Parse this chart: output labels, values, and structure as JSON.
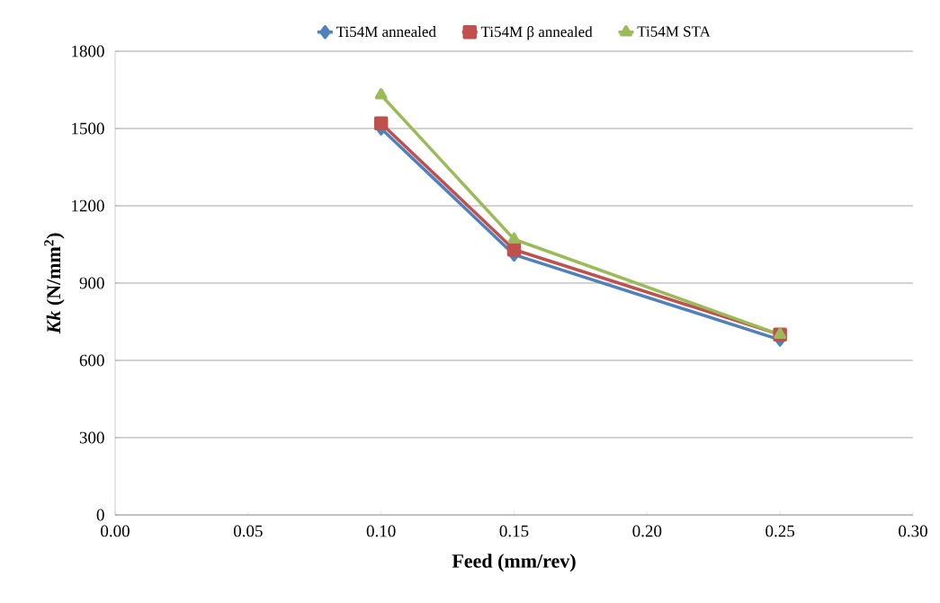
{
  "chart_data": {
    "type": "line",
    "xlabel": "Feed (mm/rev)",
    "ylabel": "*Kk* (N/mm$^{2}$)",
    "x": [
      0.1,
      0.15,
      0.25
    ],
    "series": [
      {
        "name": "Ti54M annealed",
        "color": "#4f81bd",
        "marker": "diamond",
        "values": [
          1500,
          1010,
          680
        ]
      },
      {
        "name": "Ti54M β annealed",
        "color": "#c0504d",
        "marker": "square",
        "values": [
          1520,
          1030,
          700
        ]
      },
      {
        "name": "Ti54M STA",
        "color": "#9bbb59",
        "marker": "triangle",
        "values": [
          1630,
          1070,
          700
        ]
      }
    ],
    "xlim": [
      0,
      0.3
    ],
    "xticks": [
      {
        "value": 0,
        "label": "0.00"
      },
      {
        "value": 0.05,
        "label": "0.05"
      },
      {
        "value": 0.1,
        "label": "0.10"
      },
      {
        "value": 0.15,
        "label": "0.15"
      },
      {
        "value": 0.2,
        "label": "0.20"
      },
      {
        "value": 0.25,
        "label": "0.25"
      },
      {
        "value": 0.3,
        "label": "0.30"
      }
    ],
    "ylim": [
      0,
      1800
    ],
    "yticks": [
      0,
      300,
      600,
      900,
      1200,
      1500,
      1800
    ],
    "grid": "y",
    "legend": "top",
    "line_style": "solid"
  }
}
